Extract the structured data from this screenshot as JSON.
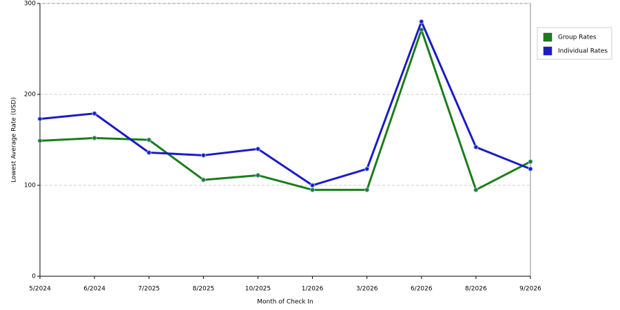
{
  "chart_data": {
    "type": "line",
    "x_label": "Month of Check In",
    "y_label": "Lowest Average Rate (USD)",
    "categories": [
      "5/2024",
      "6/2024",
      "7/2025",
      "8/2025",
      "10/2025",
      "1/2026",
      "3/2026",
      "6/2026",
      "8/2026",
      "9/2026"
    ],
    "series": [
      {
        "name": "Group Rates",
        "color": "#1a7d1a",
        "values": [
          149,
          152,
          150,
          106,
          111,
          95,
          95,
          271,
          95,
          126
        ]
      },
      {
        "name": "Individual Rates",
        "color": "#1a1ac8",
        "values": [
          173,
          179,
          136,
          133,
          140,
          100,
          118,
          280,
          142,
          118
        ]
      }
    ],
    "ylim": [
      0,
      300
    ],
    "yticks": [
      0,
      100,
      200,
      300
    ],
    "grid": true,
    "legend": "right"
  }
}
